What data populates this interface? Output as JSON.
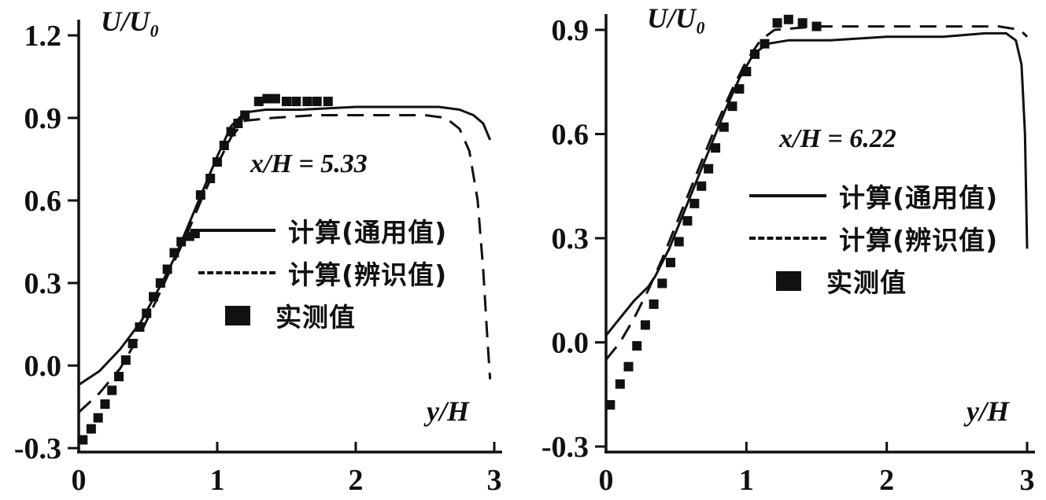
{
  "figure": {
    "background": "#ffffff",
    "ink": "#111111",
    "description": "Two velocity-profile comparison plots"
  },
  "chart_data": [
    {
      "type": "line",
      "annotation": "x/H = 5.33",
      "xlabel": "y/H",
      "ylabel": "U/U₀",
      "xlim": [
        0,
        3
      ],
      "ylim": [
        -0.3,
        1.2
      ],
      "x_ticks": [
        0,
        1,
        2,
        3
      ],
      "x_tick_labels": [
        "0",
        "1",
        "2",
        "3"
      ],
      "y_ticks": [
        -0.3,
        0.0,
        0.3,
        0.6,
        0.9,
        1.2
      ],
      "y_tick_labels": [
        "-0.3",
        "0.0",
        "0.3",
        "0.6",
        "0.9",
        "1.2"
      ],
      "grid": false,
      "legend_position": "inside-center-right",
      "legend": [
        {
          "label": "计算(通用值)",
          "style": "solid"
        },
        {
          "label": "计算(辨识值)",
          "style": "dashed"
        },
        {
          "label": "实测值",
          "style": "square"
        }
      ],
      "series": [
        {
          "name": "计算(通用值)",
          "style": "solid",
          "points": [
            [
              0,
              -0.07
            ],
            [
              0.15,
              -0.02
            ],
            [
              0.3,
              0.06
            ],
            [
              0.45,
              0.16
            ],
            [
              0.6,
              0.3
            ],
            [
              0.7,
              0.4
            ],
            [
              0.8,
              0.52
            ],
            [
              0.9,
              0.64
            ],
            [
              1.0,
              0.76
            ],
            [
              1.1,
              0.87
            ],
            [
              1.2,
              0.92
            ],
            [
              1.35,
              0.93
            ],
            [
              1.6,
              0.93
            ],
            [
              2.0,
              0.94
            ],
            [
              2.4,
              0.94
            ],
            [
              2.6,
              0.94
            ],
            [
              2.75,
              0.93
            ],
            [
              2.85,
              0.91
            ],
            [
              2.92,
              0.88
            ],
            [
              2.97,
              0.82
            ]
          ]
        },
        {
          "name": "计算(辨识值)",
          "style": "dashed",
          "points": [
            [
              0,
              -0.17
            ],
            [
              0.15,
              -0.1
            ],
            [
              0.3,
              -0.01
            ],
            [
              0.45,
              0.12
            ],
            [
              0.6,
              0.28
            ],
            [
              0.7,
              0.39
            ],
            [
              0.8,
              0.5
            ],
            [
              0.9,
              0.62
            ],
            [
              1.0,
              0.73
            ],
            [
              1.1,
              0.83
            ],
            [
              1.2,
              0.89
            ],
            [
              1.4,
              0.9
            ],
            [
              1.7,
              0.91
            ],
            [
              2.0,
              0.91
            ],
            [
              2.3,
              0.91
            ],
            [
              2.5,
              0.91
            ],
            [
              2.65,
              0.9
            ],
            [
              2.75,
              0.86
            ],
            [
              2.82,
              0.78
            ],
            [
              2.88,
              0.6
            ],
            [
              2.92,
              0.35
            ],
            [
              2.95,
              0.1
            ],
            [
              2.97,
              -0.05
            ]
          ]
        },
        {
          "name": "实测值",
          "style": "scatter-square",
          "points": [
            [
              0.03,
              -0.27
            ],
            [
              0.09,
              -0.23
            ],
            [
              0.14,
              -0.19
            ],
            [
              0.19,
              -0.14
            ],
            [
              0.24,
              -0.09
            ],
            [
              0.29,
              -0.04
            ],
            [
              0.34,
              0.02
            ],
            [
              0.39,
              0.08
            ],
            [
              0.44,
              0.14
            ],
            [
              0.49,
              0.19
            ],
            [
              0.54,
              0.25
            ],
            [
              0.59,
              0.3
            ],
            [
              0.64,
              0.35
            ],
            [
              0.69,
              0.41
            ],
            [
              0.74,
              0.45
            ],
            [
              0.8,
              0.47
            ],
            [
              0.84,
              0.48
            ],
            [
              0.88,
              0.62
            ],
            [
              0.95,
              0.68
            ],
            [
              1.0,
              0.74
            ],
            [
              1.05,
              0.8
            ],
            [
              1.1,
              0.85
            ],
            [
              1.15,
              0.88
            ],
            [
              1.2,
              0.91
            ],
            [
              1.3,
              0.96
            ],
            [
              1.36,
              0.97
            ],
            [
              1.42,
              0.97
            ],
            [
              1.5,
              0.96
            ],
            [
              1.57,
              0.96
            ],
            [
              1.65,
              0.96
            ],
            [
              1.72,
              0.96
            ],
            [
              1.8,
              0.96
            ]
          ]
        }
      ]
    },
    {
      "type": "line",
      "annotation": "x/H = 6.22",
      "xlabel": "y/H",
      "ylabel": "U/U₀",
      "xlim": [
        0,
        3
      ],
      "ylim": [
        -0.3,
        0.9
      ],
      "x_ticks": [
        0,
        1,
        2,
        3
      ],
      "x_tick_labels": [
        "0",
        "1",
        "2",
        "3"
      ],
      "y_ticks": [
        -0.3,
        0.0,
        0.3,
        0.6,
        0.9
      ],
      "y_tick_labels": [
        "-0.3",
        "0.0",
        "0.3",
        "0.6",
        "0.9"
      ],
      "grid": false,
      "legend_position": "inside-center-right",
      "legend": [
        {
          "label": "计算(通用值)",
          "style": "solid"
        },
        {
          "label": "计算(辨识值)",
          "style": "dashed"
        },
        {
          "label": "实测值",
          "style": "square"
        }
      ],
      "series": [
        {
          "name": "计算(通用值)",
          "style": "solid",
          "points": [
            [
              0,
              0.02
            ],
            [
              0.1,
              0.07
            ],
            [
              0.2,
              0.12
            ],
            [
              0.3,
              0.16
            ],
            [
              0.35,
              0.19
            ],
            [
              0.45,
              0.27
            ],
            [
              0.55,
              0.37
            ],
            [
              0.65,
              0.47
            ],
            [
              0.75,
              0.57
            ],
            [
              0.85,
              0.67
            ],
            [
              0.95,
              0.76
            ],
            [
              1.05,
              0.83
            ],
            [
              1.15,
              0.86
            ],
            [
              1.3,
              0.87
            ],
            [
              1.6,
              0.87
            ],
            [
              2.0,
              0.88
            ],
            [
              2.4,
              0.88
            ],
            [
              2.7,
              0.89
            ],
            [
              2.85,
              0.89
            ],
            [
              2.92,
              0.87
            ],
            [
              2.96,
              0.8
            ],
            [
              2.985,
              0.6
            ],
            [
              3.0,
              0.27
            ]
          ]
        },
        {
          "name": "计算(辨识值)",
          "style": "dashed",
          "points": [
            [
              0,
              -0.05
            ],
            [
              0.1,
              0.0
            ],
            [
              0.2,
              0.07
            ],
            [
              0.3,
              0.15
            ],
            [
              0.4,
              0.24
            ],
            [
              0.5,
              0.34
            ],
            [
              0.6,
              0.44
            ],
            [
              0.7,
              0.54
            ],
            [
              0.8,
              0.64
            ],
            [
              0.9,
              0.73
            ],
            [
              1.0,
              0.81
            ],
            [
              1.1,
              0.87
            ],
            [
              1.2,
              0.9
            ],
            [
              1.5,
              0.91
            ],
            [
              2.0,
              0.91
            ],
            [
              2.5,
              0.91
            ],
            [
              2.8,
              0.91
            ],
            [
              2.95,
              0.9
            ],
            [
              3.0,
              0.88
            ]
          ]
        },
        {
          "name": "实测值",
          "style": "scatter-square",
          "points": [
            [
              0.03,
              -0.18
            ],
            [
              0.1,
              -0.12
            ],
            [
              0.16,
              -0.07
            ],
            [
              0.22,
              -0.01
            ],
            [
              0.28,
              0.05
            ],
            [
              0.34,
              0.11
            ],
            [
              0.4,
              0.17
            ],
            [
              0.46,
              0.23
            ],
            [
              0.52,
              0.29
            ],
            [
              0.58,
              0.35
            ],
            [
              0.63,
              0.4
            ],
            [
              0.68,
              0.45
            ],
            [
              0.73,
              0.5
            ],
            [
              0.78,
              0.56
            ],
            [
              0.84,
              0.62
            ],
            [
              0.9,
              0.68
            ],
            [
              0.95,
              0.73
            ],
            [
              1.0,
              0.78
            ],
            [
              1.06,
              0.83
            ],
            [
              1.13,
              0.86
            ],
            [
              1.22,
              0.92
            ],
            [
              1.3,
              0.93
            ],
            [
              1.4,
              0.92
            ],
            [
              1.5,
              0.91
            ]
          ]
        }
      ]
    }
  ]
}
